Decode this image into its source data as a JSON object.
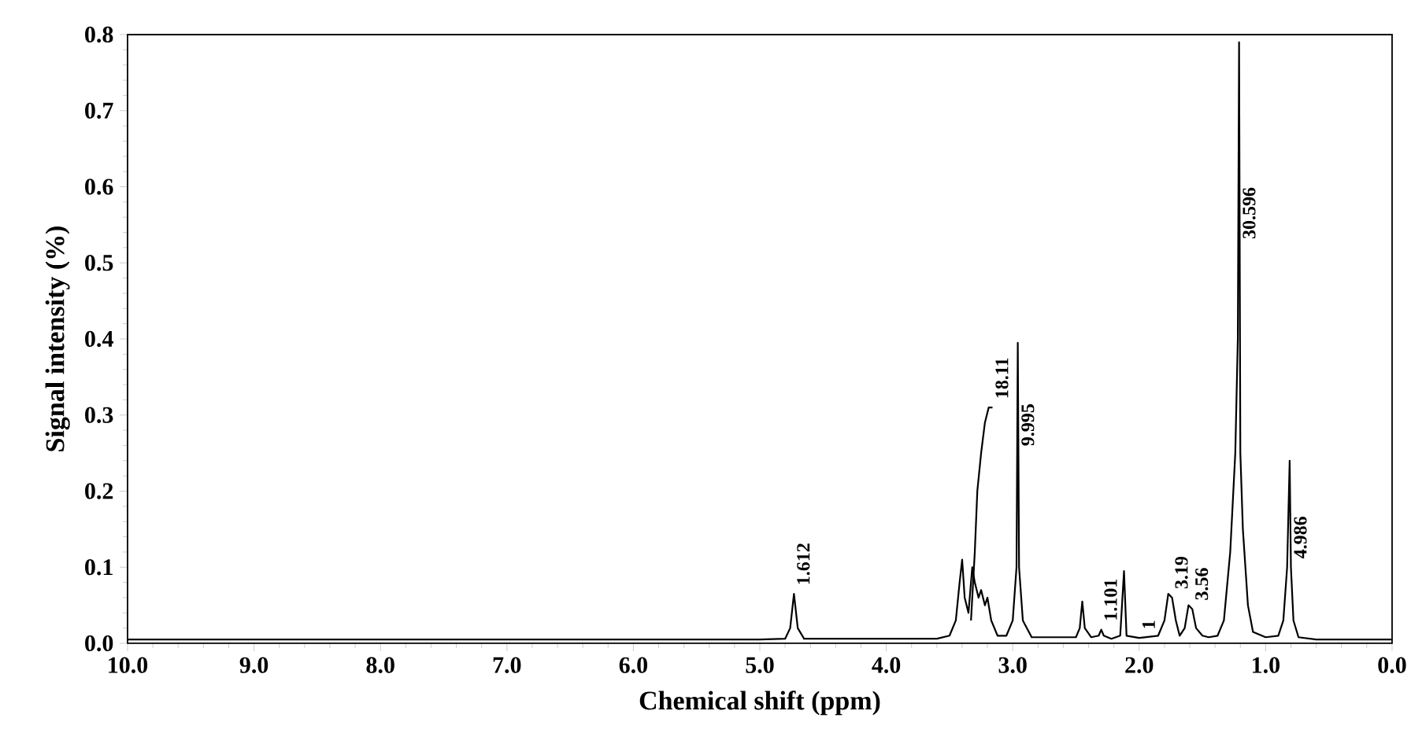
{
  "chart_data": {
    "type": "line",
    "xlabel": "Chemical shift (ppm)",
    "ylabel": "Signal intensity (%)",
    "marker": "none",
    "line_style": "solid",
    "xlim": [
      10,
      0
    ],
    "ylim": [
      0,
      0.8
    ],
    "xticks": [
      {
        "value": 10,
        "label": "10.0"
      },
      {
        "value": 9,
        "label": "9.0"
      },
      {
        "value": 8,
        "label": "8.0"
      },
      {
        "value": 7,
        "label": "7.0"
      },
      {
        "value": 6,
        "label": "6.0"
      },
      {
        "value": 5,
        "label": "5.0"
      },
      {
        "value": 4,
        "label": "4.0"
      },
      {
        "value": 3,
        "label": "3.0"
      },
      {
        "value": 2,
        "label": "2.0"
      },
      {
        "value": 1,
        "label": "1.0"
      },
      {
        "value": 0,
        "label": "0.0"
      }
    ],
    "yticks": [
      {
        "value": 0,
        "label": "0.0"
      },
      0.1,
      0.2,
      0.3,
      0.4,
      0.5,
      0.6,
      0.7,
      0.8
    ],
    "series": [
      {
        "color": "#000000",
        "x": [
          10.0,
          5.0,
          4.8,
          4.76,
          4.73,
          4.7,
          4.65,
          3.6,
          3.5,
          3.45,
          3.42,
          3.4,
          3.38,
          3.35,
          3.32,
          3.3,
          3.27,
          3.25,
          3.22,
          3.2,
          3.17,
          3.12,
          3.05,
          3.0,
          2.97,
          2.96,
          2.95,
          2.92,
          2.85,
          2.5,
          2.47,
          2.45,
          2.43,
          2.38,
          2.32,
          2.3,
          2.28,
          2.22,
          2.15,
          2.12,
          2.1,
          2.0,
          1.85,
          1.8,
          1.77,
          1.74,
          1.71,
          1.68,
          1.64,
          1.61,
          1.58,
          1.55,
          1.5,
          1.45,
          1.38,
          1.33,
          1.28,
          1.24,
          1.22,
          1.21,
          1.2,
          1.18,
          1.14,
          1.1,
          1.0,
          0.9,
          0.86,
          0.83,
          0.81,
          0.8,
          0.78,
          0.74,
          0.6,
          0.0
        ],
        "values": [
          0.005,
          0.005,
          0.006,
          0.02,
          0.065,
          0.02,
          0.006,
          0.006,
          0.01,
          0.03,
          0.08,
          0.11,
          0.06,
          0.04,
          0.1,
          0.08,
          0.06,
          0.07,
          0.05,
          0.06,
          0.03,
          0.01,
          0.01,
          0.03,
          0.1,
          0.395,
          0.1,
          0.03,
          0.008,
          0.008,
          0.02,
          0.055,
          0.02,
          0.008,
          0.01,
          0.018,
          0.01,
          0.006,
          0.01,
          0.095,
          0.01,
          0.007,
          0.01,
          0.03,
          0.065,
          0.06,
          0.03,
          0.01,
          0.02,
          0.05,
          0.045,
          0.02,
          0.01,
          0.008,
          0.01,
          0.03,
          0.12,
          0.25,
          0.4,
          0.79,
          0.25,
          0.15,
          0.05,
          0.015,
          0.008,
          0.01,
          0.03,
          0.1,
          0.24,
          0.1,
          0.03,
          0.008,
          0.005,
          0.005
        ]
      },
      {
        "color": "#000000",
        "x": [
          3.33,
          3.3,
          3.28,
          3.25,
          3.22,
          3.19,
          3.16
        ],
        "values": [
          0.03,
          0.12,
          0.2,
          0.25,
          0.29,
          0.31,
          0.31
        ]
      }
    ],
    "annotations": [
      {
        "text": "1.612",
        "x": 4.73,
        "y": 0.065
      },
      {
        "text": "18.11",
        "x": 3.16,
        "y": 0.31
      },
      {
        "text": "9.995",
        "x": 2.955,
        "y": 0.248
      },
      {
        "text": "1.101",
        "x": 2.3,
        "y": 0.018
      },
      {
        "text": "1",
        "x": 2.0,
        "y": 0.007
      },
      {
        "text": "3.19",
        "x": 1.74,
        "y": 0.06
      },
      {
        "text": "3.56",
        "x": 1.58,
        "y": 0.045
      },
      {
        "text": "30.596",
        "x": 1.205,
        "y": 0.52
      },
      {
        "text": "4.986",
        "x": 0.8,
        "y": 0.1
      }
    ]
  }
}
